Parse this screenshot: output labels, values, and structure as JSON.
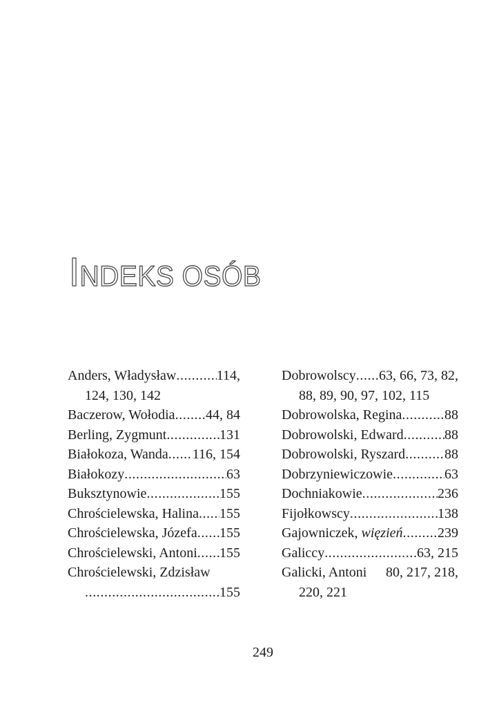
{
  "page": {
    "title": "Indeks osób",
    "page_number": "249"
  },
  "colors": {
    "ink": "#1c1c1c",
    "background": "#ffffff",
    "title_outline": "#3f3f3f"
  },
  "index": {
    "columns": [
      {
        "side": "left",
        "entries": [
          {
            "name": "Anders, Władysław",
            "pages": "114,",
            "continuation": "124, 130, 142"
          },
          {
            "name": "Baczerow, Wołodia",
            "pages": "44, 84"
          },
          {
            "name": "Berling, Zygmunt",
            "pages": "131"
          },
          {
            "name": "Białokoza, Wanda",
            "pages": "116, 154"
          },
          {
            "name": "Białokozy",
            "pages": "63"
          },
          {
            "name": "Buksztynowie",
            "pages": "155"
          },
          {
            "name": "Chrościelewska, Halina",
            "pages": "155"
          },
          {
            "name": "Chrościelewska, Józefa",
            "pages": "155"
          },
          {
            "name": "Chrościelewski, Antoni",
            "pages": "155"
          },
          {
            "name": "Chrościelewski, Zdzisław",
            "pages": "",
            "continuation_leader_pages": "155"
          }
        ]
      },
      {
        "side": "right",
        "entries": [
          {
            "name": "Dobrowolscy",
            "pages": "63, 66, 73, 82,",
            "continuation": "88, 89, 90, 97, 102, 115"
          },
          {
            "name": "Dobrowolska, Regina",
            "pages": "88"
          },
          {
            "name": "Dobrowolski, Edward",
            "pages": "88"
          },
          {
            "name": "Dobrowolski, Ryszard",
            "pages": "88"
          },
          {
            "name": "Dobrzyniewiczowie",
            "pages": "63"
          },
          {
            "name": "Dochniakowie",
            "pages": "236"
          },
          {
            "name": "Fijołkowscy",
            "pages": "138"
          },
          {
            "name": "Gajowniczek, ",
            "name_italic": "więzień",
            "pages": "239"
          },
          {
            "name": "Galiccy",
            "pages": "63, 215"
          },
          {
            "name": "Galicki, Antoni",
            "pages": "80, 217, 218,",
            "leader": false,
            "continuation": "220, 221"
          }
        ]
      }
    ]
  }
}
